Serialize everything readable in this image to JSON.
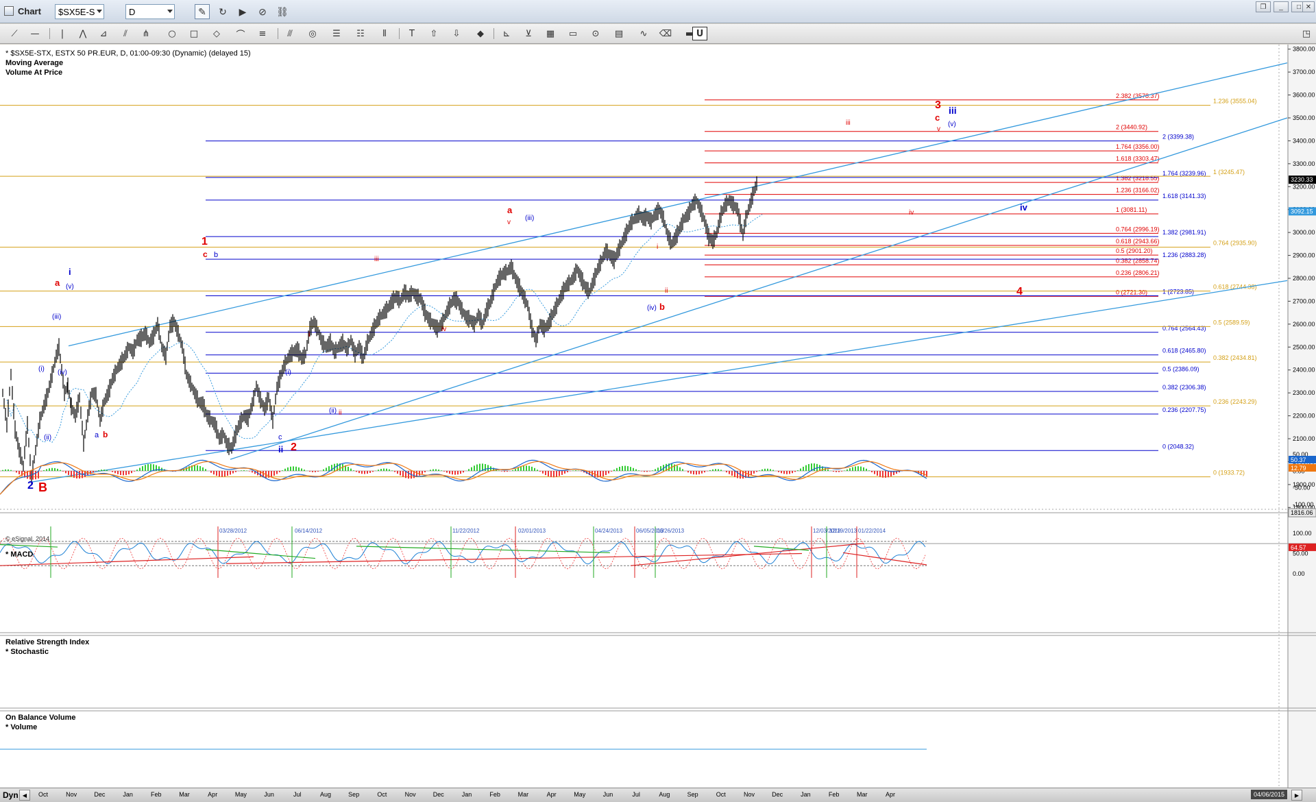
{
  "window": {
    "title": "Chart",
    "symbol": "$SX5E-S",
    "interval": "D"
  },
  "chart_header": {
    "line1": "* $SX5E-STX, ESTX 50 PR.EUR, D, 01:00-09:30 (Dynamic) (delayed 15)",
    "line2": "Moving Average",
    "line3": "Volume At Price"
  },
  "copyright": "© eSignal, 2014",
  "panes": {
    "macd": "* MACD",
    "rsi": "Relative Strength Index",
    "stoch": "* Stochastic",
    "obv": "On Balance Volume",
    "volume": "* Volume"
  },
  "bottom": {
    "dyn": "Dyn",
    "date": "04/06/2015"
  },
  "colors": {
    "red": "#e00000",
    "blue": "#0000cc",
    "orange": "#d4a017",
    "trend": "#3399dd",
    "bar": "#000000"
  },
  "chart_data": {
    "type": "ohlc",
    "price_axis": {
      "ticks": [
        1800,
        1900,
        2000,
        2100,
        2200,
        2300,
        2400,
        2500,
        2600,
        2700,
        2800,
        2900,
        3000,
        3100,
        3200,
        3300,
        3400,
        3500,
        3600,
        3700,
        3800
      ],
      "range": [
        1780,
        3820
      ],
      "last_price": "3230.33",
      "ma_value": "3092.15",
      "low_marker": "1816.06"
    },
    "x_axis": {
      "months": [
        "Oct",
        "Nov",
        "Dec",
        "Jan",
        "Feb",
        "Mar",
        "Apr",
        "May",
        "Jun",
        "Jul",
        "Aug",
        "Sep",
        "Oct",
        "Nov",
        "Dec",
        "Jan",
        "Feb",
        "Mar",
        "Apr",
        "May",
        "Jun",
        "Jul",
        "Aug",
        "Sep",
        "Oct",
        "Nov",
        "Dec",
        "Jan",
        "Feb",
        "Mar",
        "Apr"
      ]
    },
    "series_path": [
      [
        0,
        2300
      ],
      [
        6,
        2160
      ],
      [
        12,
        2380
      ],
      [
        18,
        2140
      ],
      [
        24,
        2050
      ],
      [
        30,
        1980
      ],
      [
        36,
        2160
      ],
      [
        42,
        1930
      ],
      [
        48,
        2050
      ],
      [
        54,
        2180
      ],
      [
        60,
        2240
      ],
      [
        66,
        2300
      ],
      [
        72,
        2380
      ],
      [
        78,
        2460
      ],
      [
        82,
        2500
      ],
      [
        86,
        2400
      ],
      [
        90,
        2300
      ],
      [
        95,
        2330
      ],
      [
        100,
        2240
      ],
      [
        106,
        2200
      ],
      [
        112,
        2280
      ],
      [
        118,
        2080
      ],
      [
        124,
        2200
      ],
      [
        130,
        2300
      ],
      [
        136,
        2290
      ],
      [
        142,
        2180
      ],
      [
        148,
        2260
      ],
      [
        154,
        2300
      ],
      [
        160,
        2360
      ],
      [
        166,
        2400
      ],
      [
        172,
        2430
      ],
      [
        178,
        2460
      ],
      [
        184,
        2500
      ],
      [
        190,
        2480
      ],
      [
        196,
        2530
      ],
      [
        202,
        2540
      ],
      [
        208,
        2560
      ],
      [
        214,
        2520
      ],
      [
        220,
        2550
      ],
      [
        226,
        2600
      ],
      [
        232,
        2500
      ],
      [
        238,
        2460
      ],
      [
        244,
        2590
      ],
      [
        250,
        2610
      ],
      [
        256,
        2560
      ],
      [
        262,
        2500
      ],
      [
        268,
        2380
      ],
      [
        274,
        2340
      ],
      [
        280,
        2300
      ],
      [
        286,
        2260
      ],
      [
        292,
        2250
      ],
      [
        298,
        2200
      ],
      [
        304,
        2180
      ],
      [
        310,
        2160
      ],
      [
        316,
        2100
      ],
      [
        322,
        2120
      ],
      [
        328,
        2070
      ],
      [
        334,
        2060
      ],
      [
        340,
        2120
      ],
      [
        346,
        2170
      ],
      [
        352,
        2200
      ],
      [
        358,
        2190
      ],
      [
        364,
        2250
      ],
      [
        370,
        2330
      ],
      [
        376,
        2270
      ],
      [
        382,
        2230
      ],
      [
        388,
        2280
      ],
      [
        394,
        2180
      ],
      [
        400,
        2320
      ],
      [
        406,
        2380
      ],
      [
        412,
        2430
      ],
      [
        418,
        2460
      ],
      [
        424,
        2480
      ],
      [
        430,
        2490
      ],
      [
        436,
        2450
      ],
      [
        442,
        2470
      ],
      [
        448,
        2580
      ],
      [
        454,
        2610
      ],
      [
        460,
        2570
      ],
      [
        466,
        2520
      ],
      [
        472,
        2500
      ],
      [
        478,
        2520
      ],
      [
        484,
        2480
      ],
      [
        490,
        2500
      ],
      [
        496,
        2520
      ],
      [
        502,
        2490
      ],
      [
        508,
        2530
      ],
      [
        514,
        2470
      ],
      [
        520,
        2500
      ],
      [
        526,
        2450
      ],
      [
        532,
        2520
      ],
      [
        538,
        2560
      ],
      [
        544,
        2600
      ],
      [
        550,
        2630
      ],
      [
        556,
        2650
      ],
      [
        562,
        2670
      ],
      [
        568,
        2700
      ],
      [
        574,
        2720
      ],
      [
        580,
        2700
      ],
      [
        586,
        2740
      ],
      [
        592,
        2720
      ],
      [
        598,
        2740
      ],
      [
        604,
        2720
      ],
      [
        610,
        2710
      ],
      [
        616,
        2650
      ],
      [
        622,
        2620
      ],
      [
        628,
        2600
      ],
      [
        634,
        2580
      ],
      [
        640,
        2600
      ],
      [
        646,
        2640
      ],
      [
        652,
        2680
      ],
      [
        658,
        2710
      ],
      [
        664,
        2700
      ],
      [
        670,
        2660
      ],
      [
        676,
        2630
      ],
      [
        682,
        2620
      ],
      [
        688,
        2600
      ],
      [
        694,
        2640
      ],
      [
        700,
        2600
      ],
      [
        706,
        2660
      ],
      [
        712,
        2700
      ],
      [
        718,
        2760
      ],
      [
        724,
        2800
      ],
      [
        730,
        2820
      ],
      [
        736,
        2830
      ],
      [
        742,
        2850
      ],
      [
        748,
        2800
      ],
      [
        754,
        2760
      ],
      [
        760,
        2720
      ],
      [
        766,
        2680
      ],
      [
        772,
        2580
      ],
      [
        778,
        2530
      ],
      [
        784,
        2600
      ],
      [
        790,
        2580
      ],
      [
        796,
        2600
      ],
      [
        802,
        2640
      ],
      [
        808,
        2680
      ],
      [
        814,
        2720
      ],
      [
        820,
        2760
      ],
      [
        826,
        2780
      ],
      [
        832,
        2800
      ],
      [
        838,
        2840
      ],
      [
        844,
        2800
      ],
      [
        850,
        2760
      ],
      [
        856,
        2740
      ],
      [
        862,
        2790
      ],
      [
        868,
        2840
      ],
      [
        874,
        2880
      ],
      [
        880,
        2920
      ],
      [
        886,
        2900
      ],
      [
        892,
        2880
      ],
      [
        898,
        2920
      ],
      [
        904,
        2960
      ],
      [
        910,
        3000
      ],
      [
        916,
        3040
      ],
      [
        922,
        3060
      ],
      [
        928,
        3080
      ],
      [
        934,
        3060
      ],
      [
        940,
        3070
      ],
      [
        946,
        3050
      ],
      [
        952,
        3080
      ],
      [
        958,
        3100
      ],
      [
        964,
        3060
      ],
      [
        970,
        2990
      ],
      [
        976,
        2950
      ],
      [
        982,
        2980
      ],
      [
        988,
        3020
      ],
      [
        994,
        3060
      ],
      [
        1000,
        3080
      ],
      [
        1006,
        3120
      ],
      [
        1012,
        3140
      ],
      [
        1018,
        3100
      ],
      [
        1024,
        3050
      ],
      [
        1030,
        2980
      ],
      [
        1036,
        2960
      ],
      [
        1042,
        3000
      ],
      [
        1048,
        3080
      ],
      [
        1054,
        3120
      ],
      [
        1060,
        3140
      ],
      [
        1066,
        3120
      ],
      [
        1072,
        3100
      ],
      [
        1076,
        3040
      ],
      [
        1080,
        2990
      ],
      [
        1084,
        3060
      ],
      [
        1090,
        3120
      ],
      [
        1096,
        3180
      ],
      [
        1102,
        3230
      ]
    ],
    "fib_levels": [
      {
        "label": "2.382 (3578.37)",
        "value": 3578.37,
        "color": "red"
      },
      {
        "label": "2 (3440.92)",
        "value": 3440.92,
        "color": "red"
      },
      {
        "label": "1.764 (3356.00)",
        "value": 3356.0,
        "color": "red"
      },
      {
        "label": "1.618 (3303.47)",
        "value": 3303.47,
        "color": "red"
      },
      {
        "label": "1.382 (3218.55)",
        "value": 3218.55,
        "color": "red"
      },
      {
        "label": "1.236 (3166.02)",
        "value": 3166.02,
        "color": "red"
      },
      {
        "label": "1 (3081.11)",
        "value": 3081.11,
        "color": "red"
      },
      {
        "label": "0.764 (2996.19)",
        "value": 2996.19,
        "color": "red"
      },
      {
        "label": "0.618 (2943.66)",
        "value": 2943.66,
        "color": "red"
      },
      {
        "label": "0.5 (2901.20)",
        "value": 2901.2,
        "color": "red"
      },
      {
        "label": "0.382 (2858.74)",
        "value": 2858.74,
        "color": "red"
      },
      {
        "label": "0.236 (2806.21)",
        "value": 2806.21,
        "color": "red"
      },
      {
        "label": "0 (2721.30)",
        "value": 2721.3,
        "color": "red"
      },
      {
        "label": "2 (3399.38)",
        "value": 3399.38,
        "color": "blue"
      },
      {
        "label": "1.764 (3239.96)",
        "value": 3239.96,
        "color": "blue"
      },
      {
        "label": "1.618 (3141.33)",
        "value": 3141.33,
        "color": "blue"
      },
      {
        "label": "1.382 (2981.91)",
        "value": 2981.91,
        "color": "blue"
      },
      {
        "label": "1.236 (2883.28)",
        "value": 2883.28,
        "color": "blue"
      },
      {
        "label": "1 (2723.85)",
        "value": 2723.85,
        "color": "blue"
      },
      {
        "label": "0.764 (2564.43)",
        "value": 2564.43,
        "color": "blue"
      },
      {
        "label": "0.618 (2465.80)",
        "value": 2465.8,
        "color": "blue"
      },
      {
        "label": "0.5 (2386.09)",
        "value": 2386.09,
        "color": "blue"
      },
      {
        "label": "0.382 (2306.38)",
        "value": 2306.38,
        "color": "blue"
      },
      {
        "label": "0.236 (2207.75)",
        "value": 2207.75,
        "color": "blue"
      },
      {
        "label": "0 (2048.32)",
        "value": 2048.32,
        "color": "blue"
      },
      {
        "label": "1.236 (3555.04)",
        "value": 3555.04,
        "color": "orange"
      },
      {
        "label": "1 (3245.47)",
        "value": 3245.47,
        "color": "orange"
      },
      {
        "label": "0.764 (2935.90)",
        "value": 2935.9,
        "color": "orange"
      },
      {
        "label": "0.618 (2744.38)",
        "value": 2744.38,
        "color": "orange"
      },
      {
        "label": "0.5 (2589.59)",
        "value": 2589.59,
        "color": "orange"
      },
      {
        "label": "0.382 (2434.81)",
        "value": 2434.81,
        "color": "orange"
      },
      {
        "label": "0.236 (2243.29)",
        "value": 2243.29,
        "color": "orange"
      },
      {
        "label": "0 (1933.72)",
        "value": 1933.72,
        "color": "orange"
      }
    ],
    "wave_labels": [
      {
        "text": "2",
        "color": "blue",
        "size": 16,
        "bold": true
      },
      {
        "text": "B",
        "color": "red",
        "size": 18,
        "bold": true
      },
      {
        "text": "a",
        "color": "red",
        "size": 13,
        "bold": true
      },
      {
        "text": "i",
        "color": "blue",
        "size": 13,
        "bold": true
      },
      {
        "text": "(v)",
        "color": "blue",
        "size": 10
      },
      {
        "text": "(iii)",
        "color": "blue",
        "size": 10
      },
      {
        "text": "(i)",
        "color": "blue",
        "size": 10
      },
      {
        "text": "(iv)",
        "color": "blue",
        "size": 10
      },
      {
        "text": "(ii)",
        "color": "blue",
        "size": 10
      },
      {
        "text": "a",
        "color": "blue",
        "size": 11
      },
      {
        "text": "b",
        "color": "red",
        "size": 12,
        "bold": true
      },
      {
        "text": "1",
        "color": "red",
        "size": 16,
        "bold": true
      },
      {
        "text": "c",
        "color": "red",
        "size": 12,
        "bold": true
      },
      {
        "text": "b",
        "color": "blue",
        "size": 11
      },
      {
        "text": "c",
        "color": "blue",
        "size": 11
      },
      {
        "text": "ii",
        "color": "blue",
        "size": 13,
        "bold": true
      },
      {
        "text": "2",
        "color": "red",
        "size": 16,
        "bold": true
      },
      {
        "text": "(i)",
        "color": "blue",
        "size": 10
      },
      {
        "text": "i",
        "color": "red",
        "size": 10
      },
      {
        "text": "(ii)",
        "color": "blue",
        "size": 10
      },
      {
        "text": "ii",
        "color": "red",
        "size": 10
      },
      {
        "text": "iii",
        "color": "red",
        "size": 10
      },
      {
        "text": "iv",
        "color": "red",
        "size": 10
      },
      {
        "text": "a",
        "color": "red",
        "size": 13,
        "bold": true
      },
      {
        "text": "v",
        "color": "red",
        "size": 10
      },
      {
        "text": "(iii)",
        "color": "blue",
        "size": 10
      },
      {
        "text": "(iv)",
        "color": "blue",
        "size": 10
      },
      {
        "text": "b",
        "color": "red",
        "size": 13,
        "bold": true
      },
      {
        "text": "i",
        "color": "red",
        "size": 10
      },
      {
        "text": "ii",
        "color": "red",
        "size": 10
      },
      {
        "text": "iii",
        "color": "red",
        "size": 10
      },
      {
        "text": "iv",
        "color": "red",
        "size": 10
      },
      {
        "text": "3",
        "color": "red",
        "size": 16,
        "bold": true
      },
      {
        "text": "c",
        "color": "red",
        "size": 13,
        "bold": true
      },
      {
        "text": "v",
        "color": "red",
        "size": 10
      },
      {
        "text": "iii",
        "color": "blue",
        "size": 14,
        "bold": true
      },
      {
        "text": "(v)",
        "color": "blue",
        "size": 10
      },
      {
        "text": "iv",
        "color": "blue",
        "size": 13,
        "bold": true
      },
      {
        "text": "4",
        "color": "red",
        "size": 16,
        "bold": true
      }
    ],
    "macd": {
      "ticks": [
        "50.00",
        "0.00",
        "-50.00",
        "-100.00"
      ],
      "values": [
        "50.37",
        "12.79"
      ]
    },
    "rsi": {
      "ticks": [
        "100.00",
        "50.00",
        "0.00"
      ],
      "value": "64.57",
      "dates": [
        "03/28/2012",
        "06/14/2012",
        "11/22/2012",
        "02/01/2013",
        "04/24/2013",
        "06/05/2013",
        "06/26/2013",
        "12/03/2013",
        "12/19/2013",
        "01/22/2014"
      ]
    }
  }
}
